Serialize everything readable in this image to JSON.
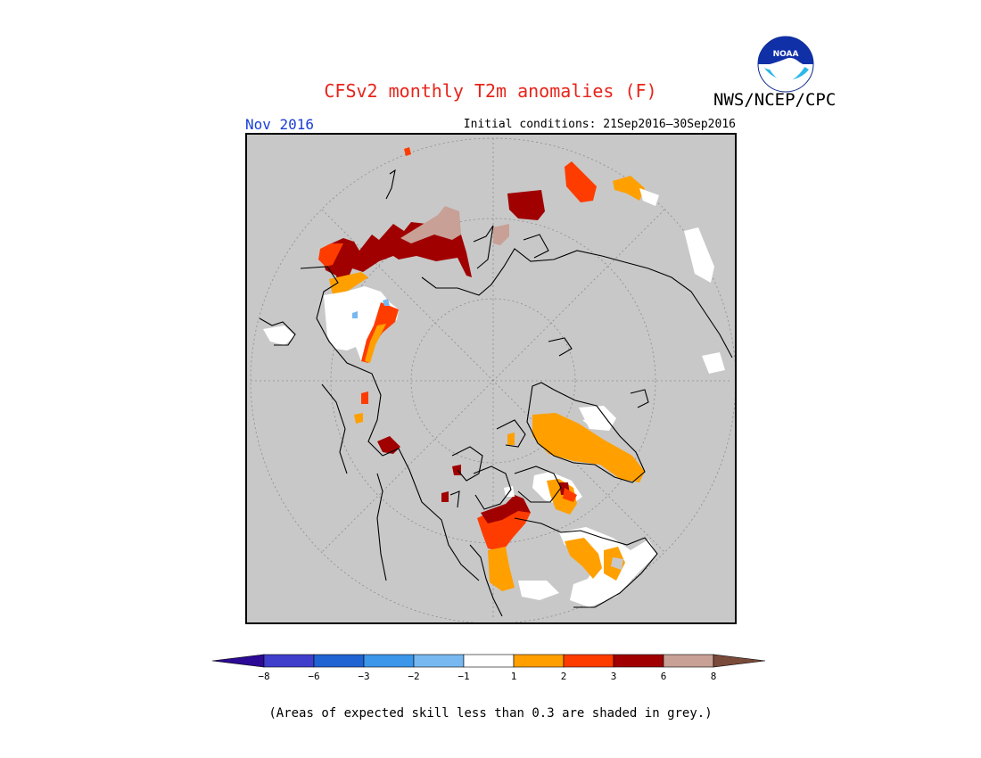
{
  "header": {
    "title": "CFSv2 monthly T2m anomalies (F)",
    "agency": "NWS/NCEP/CPC",
    "logo_text": "NOAA",
    "month": "Nov 2016",
    "initial_conditions": "Initial conditions: 21Sep2016–30Sep2016"
  },
  "legend": {
    "tick_labels": [
      "−8",
      "−6",
      "−3",
      "−2",
      "−1",
      "1",
      "2",
      "3",
      "6",
      "8"
    ],
    "colors": [
      "#2c0a96",
      "#3f3fcc",
      "#1f64d2",
      "#3c96ea",
      "#78b8f0",
      "#ffffff",
      "#ffa000",
      "#ff3c00",
      "#a00000",
      "#c8a096",
      "#7a4a3a"
    ],
    "color_meanings": [
      "< -8",
      "-8 to -6",
      "-6 to -3",
      "-3 to -2",
      "-2 to -1",
      "-1 to 1",
      "1 to 2",
      "2 to 3",
      "3 to 6",
      "6 to 8",
      "> 8"
    ]
  },
  "map": {
    "projection": "north polar stereographic",
    "background_color": "#c8c8c8",
    "no_skill_note": "(Areas of expected skill less than 0.3 are shaded in grey.)"
  }
}
